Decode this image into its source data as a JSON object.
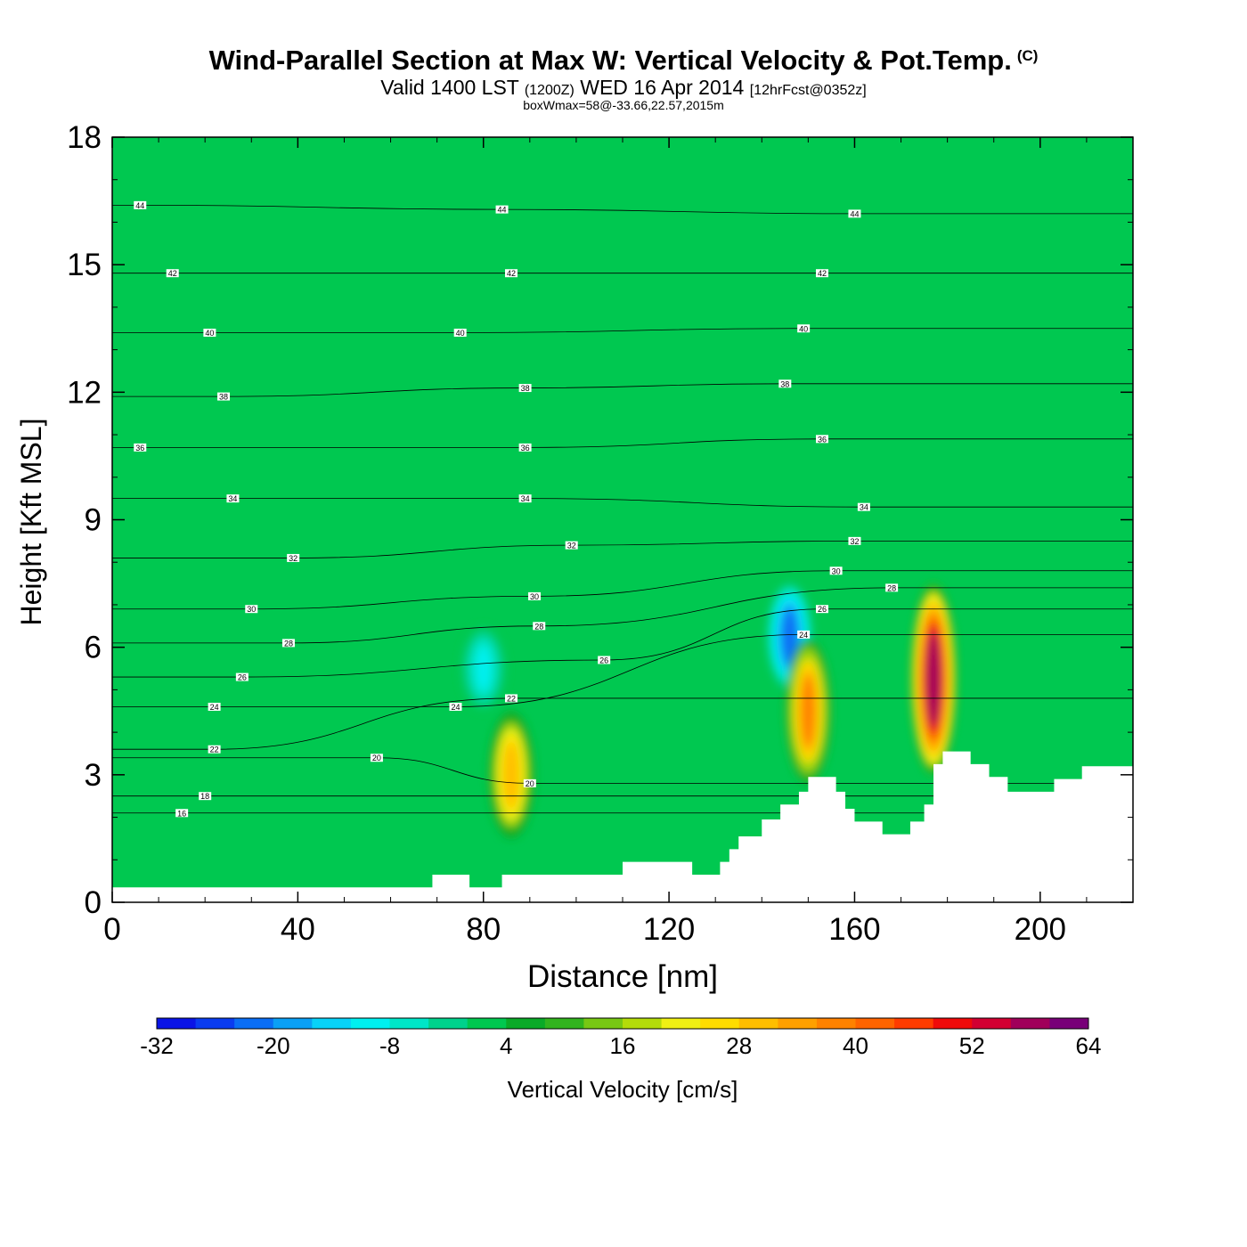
{
  "header": {
    "title": "Wind-Parallel Section at Max W: Vertical Velocity & Pot.Temp.",
    "copyright": "(C)",
    "valid_prefix": "Valid 1400 LST",
    "valid_utc": "(1200Z)",
    "valid_date": "WED 16 Apr 2014",
    "forecast": "[12hrFcst@0352z]",
    "box_info": "boxWmax=58@-33.66,22.57,2015m"
  },
  "chart_data": {
    "type": "heatmap",
    "xlabel": "Distance [nm]",
    "ylabel": "Height [Kft MSL]",
    "xlim": [
      0,
      220
    ],
    "ylim": [
      0,
      18
    ],
    "x_ticks": [
      0,
      40,
      80,
      120,
      160,
      200
    ],
    "y_ticks": [
      0,
      3,
      6,
      9,
      12,
      15,
      18
    ],
    "colorbar": {
      "label": "Vertical Velocity [cm/s]",
      "min": -32,
      "max": 68,
      "step": 4,
      "tick_labels": [
        "-32",
        "-20",
        "-8",
        "4",
        "16",
        "28",
        "40",
        "52",
        "64"
      ],
      "colors": [
        "#0a14e6",
        "#0a3cf0",
        "#0a6ef5",
        "#0aa0f5",
        "#08d2f8",
        "#00f0f0",
        "#00e6c8",
        "#00d28c",
        "#00c850",
        "#0aaa28",
        "#32b41e",
        "#78c814",
        "#b4dc0a",
        "#f0f014",
        "#ffdc00",
        "#ffbe00",
        "#ffa000",
        "#ff8200",
        "#ff6400",
        "#ff3c00",
        "#f00a0a",
        "#d20032",
        "#a0005a",
        "#780078"
      ]
    },
    "background_value_cm_s": 2,
    "updraft_cores": [
      {
        "x_nm": 86,
        "base_kft": 1.5,
        "top_kft": 4.5,
        "max_w_cm_s": 30
      },
      {
        "x_nm": 150,
        "base_kft": 2.8,
        "top_kft": 6.2,
        "max_w_cm_s": 36
      },
      {
        "x_nm": 177,
        "base_kft": 3.0,
        "top_kft": 7.5,
        "max_w_cm_s": 58
      }
    ],
    "downdraft_cores": [
      {
        "x_nm": 146,
        "base_kft": 5.0,
        "top_kft": 7.5,
        "min_w_cm_s": -24
      },
      {
        "x_nm": 80,
        "base_kft": 4.5,
        "top_kft": 6.5,
        "min_w_cm_s": -10
      }
    ],
    "theta_contours_kft": [
      {
        "label": "16",
        "x": 15,
        "y": 2.1
      },
      {
        "label": "18",
        "x": 20,
        "y": 2.5
      },
      {
        "label": "20",
        "x": 57,
        "y": 3.4
      },
      {
        "label": "20",
        "x": 90,
        "y": 2.8
      },
      {
        "label": "22",
        "x": 22,
        "y": 3.6
      },
      {
        "label": "22",
        "x": 86,
        "y": 4.8
      },
      {
        "label": "24",
        "x": 22,
        "y": 4.6
      },
      {
        "label": "24",
        "x": 74,
        "y": 4.6
      },
      {
        "label": "24",
        "x": 149,
        "y": 6.3
      },
      {
        "label": "26",
        "x": 28,
        "y": 5.3
      },
      {
        "label": "26",
        "x": 106,
        "y": 5.7
      },
      {
        "label": "26",
        "x": 153,
        "y": 6.9
      },
      {
        "label": "28",
        "x": 38,
        "y": 6.1
      },
      {
        "label": "28",
        "x": 92,
        "y": 6.5
      },
      {
        "label": "28",
        "x": 168,
        "y": 7.4
      },
      {
        "label": "30",
        "x": 30,
        "y": 6.9
      },
      {
        "label": "30",
        "x": 91,
        "y": 7.2
      },
      {
        "label": "30",
        "x": 156,
        "y": 7.8
      },
      {
        "label": "32",
        "x": 39,
        "y": 8.1
      },
      {
        "label": "32",
        "x": 99,
        "y": 8.4
      },
      {
        "label": "32",
        "x": 160,
        "y": 8.5
      },
      {
        "label": "34",
        "x": 26,
        "y": 9.5
      },
      {
        "label": "34",
        "x": 89,
        "y": 9.5
      },
      {
        "label": "34",
        "x": 162,
        "y": 9.3
      },
      {
        "label": "36",
        "x": 6,
        "y": 10.7
      },
      {
        "label": "36",
        "x": 89,
        "y": 10.7
      },
      {
        "label": "36",
        "x": 153,
        "y": 10.9
      },
      {
        "label": "38",
        "x": 24,
        "y": 11.9
      },
      {
        "label": "38",
        "x": 89,
        "y": 12.1
      },
      {
        "label": "38",
        "x": 145,
        "y": 12.2
      },
      {
        "label": "40",
        "x": 21,
        "y": 13.4
      },
      {
        "label": "40",
        "x": 75,
        "y": 13.4
      },
      {
        "label": "40",
        "x": 149,
        "y": 13.5
      },
      {
        "label": "42",
        "x": 13,
        "y": 14.8
      },
      {
        "label": "42",
        "x": 86,
        "y": 14.8
      },
      {
        "label": "42",
        "x": 153,
        "y": 14.8
      },
      {
        "label": "44",
        "x": 6,
        "y": 16.4
      },
      {
        "label": "44",
        "x": 84,
        "y": 16.3
      },
      {
        "label": "44",
        "x": 160,
        "y": 16.2
      }
    ],
    "terrain_kft": [
      {
        "x": 0,
        "y": 0.35
      },
      {
        "x": 69,
        "y": 0.35
      },
      {
        "x": 69,
        "y": 0.65
      },
      {
        "x": 77,
        "y": 0.65
      },
      {
        "x": 77,
        "y": 0.35
      },
      {
        "x": 84,
        "y": 0.35
      },
      {
        "x": 84,
        "y": 0.65
      },
      {
        "x": 110,
        "y": 0.65
      },
      {
        "x": 110,
        "y": 0.95
      },
      {
        "x": 125,
        "y": 0.95
      },
      {
        "x": 125,
        "y": 0.65
      },
      {
        "x": 131,
        "y": 0.65
      },
      {
        "x": 131,
        "y": 0.95
      },
      {
        "x": 133,
        "y": 0.95
      },
      {
        "x": 133,
        "y": 1.25
      },
      {
        "x": 135,
        "y": 1.25
      },
      {
        "x": 135,
        "y": 1.55
      },
      {
        "x": 140,
        "y": 1.55
      },
      {
        "x": 140,
        "y": 1.95
      },
      {
        "x": 144,
        "y": 1.95
      },
      {
        "x": 144,
        "y": 2.3
      },
      {
        "x": 148,
        "y": 2.3
      },
      {
        "x": 148,
        "y": 2.6
      },
      {
        "x": 150,
        "y": 2.6
      },
      {
        "x": 150,
        "y": 2.95
      },
      {
        "x": 156,
        "y": 2.95
      },
      {
        "x": 156,
        "y": 2.6
      },
      {
        "x": 158,
        "y": 2.6
      },
      {
        "x": 158,
        "y": 2.2
      },
      {
        "x": 160,
        "y": 2.2
      },
      {
        "x": 160,
        "y": 1.9
      },
      {
        "x": 166,
        "y": 1.9
      },
      {
        "x": 166,
        "y": 1.6
      },
      {
        "x": 172,
        "y": 1.6
      },
      {
        "x": 172,
        "y": 1.9
      },
      {
        "x": 175,
        "y": 1.9
      },
      {
        "x": 175,
        "y": 2.3
      },
      {
        "x": 177,
        "y": 2.3
      },
      {
        "x": 177,
        "y": 3.25
      },
      {
        "x": 179,
        "y": 3.25
      },
      {
        "x": 179,
        "y": 3.55
      },
      {
        "x": 185,
        "y": 3.55
      },
      {
        "x": 185,
        "y": 3.25
      },
      {
        "x": 189,
        "y": 3.25
      },
      {
        "x": 189,
        "y": 2.95
      },
      {
        "x": 193,
        "y": 2.95
      },
      {
        "x": 193,
        "y": 2.6
      },
      {
        "x": 203,
        "y": 2.6
      },
      {
        "x": 203,
        "y": 2.9
      },
      {
        "x": 209,
        "y": 2.9
      },
      {
        "x": 209,
        "y": 3.2
      },
      {
        "x": 220,
        "y": 3.2
      }
    ]
  }
}
